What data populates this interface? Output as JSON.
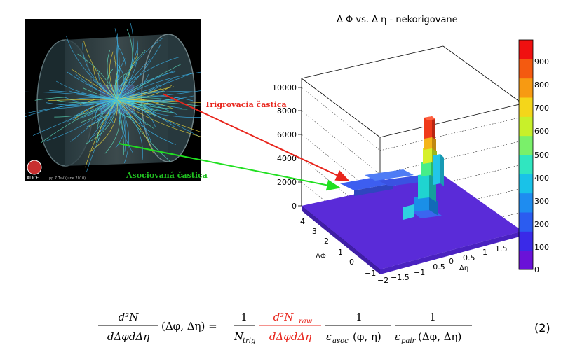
{
  "event_image": {
    "alice_logo_text": "ALICE",
    "caption": "pp 7 TeV (June 2010)"
  },
  "labels": {
    "trigger": "Trigrovacia častica",
    "associated": "Asociovaná častica"
  },
  "colors": {
    "trigger_arrow": "#e8251c",
    "associated_arrow": "#20e020"
  },
  "plot": {
    "title": "Δ Φ vs. Δ η - nekorigovane",
    "z_ticks": [
      "0",
      "2000",
      "4000",
      "6000",
      "8000",
      "10000"
    ],
    "phi_axis_label": "ΔΦ",
    "phi_ticks": [
      "−1",
      "0",
      "1",
      "2",
      "3",
      "4"
    ],
    "eta_axis_label": "Δη",
    "eta_ticks": [
      "−2",
      "−1.5",
      "−1",
      "−0.5",
      "0",
      "0.5",
      "1",
      "1.5"
    ],
    "color_scale_labels": [
      "0",
      "100",
      "200",
      "300",
      "400",
      "500",
      "600",
      "700",
      "800",
      "900"
    ],
    "color_scale_colors": [
      "#6a12d8",
      "#3a2ae8",
      "#2b5cf0",
      "#1e8cf0",
      "#19c2e8",
      "#30e6c0",
      "#7af06a",
      "#c8f02a",
      "#f4d61a",
      "#f79a12",
      "#f45a10",
      "#f01010"
    ]
  },
  "equation": {
    "lhs_num": "d²N",
    "lhs_den": "dΔφdΔη",
    "lhs_args": "(Δφ, Δη) =",
    "f1_num": "1",
    "f1_den_base": "N",
    "f1_den_sub": "trig",
    "f2_num": "d²N",
    "f2_num_sub": "raw",
    "f2_den": "dΔφdΔη",
    "f3_num": "1",
    "f3_den_base": "ε",
    "f3_den_sub": "asoc",
    "f3_den_args": "(φ, η)",
    "f4_num": "1",
    "f4_den_base": "ε",
    "f4_den_sub": "pair",
    "f4_den_args": "(Δφ, Δη)",
    "number": "(2)"
  }
}
